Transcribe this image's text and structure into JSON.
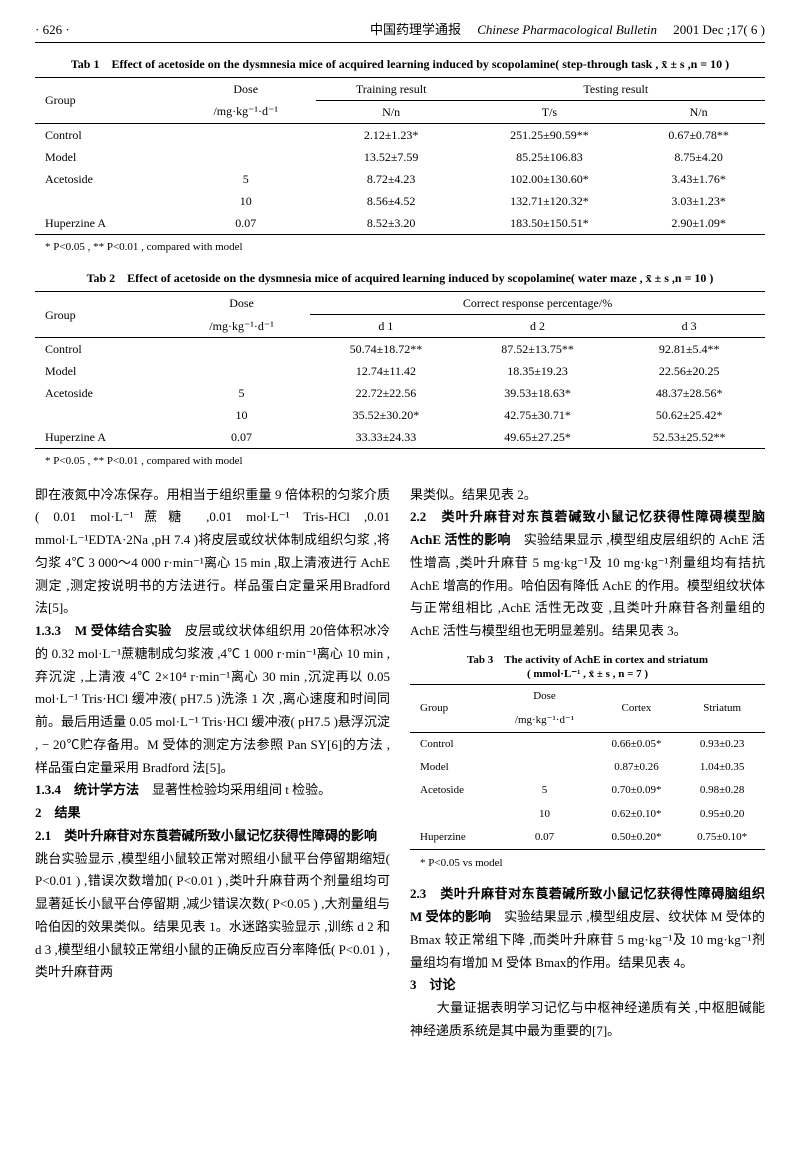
{
  "header": {
    "page": "· 626 ·",
    "journal_cn": "中国药理学通报",
    "journal_en": "Chinese Pharmacological Bulletin",
    "issue": "2001 Dec ;17( 6 )"
  },
  "tab1": {
    "title": "Tab 1　Effect of acetoside on the dysmnesia mice of acquired learning induced by scopolamine( step-through task , x̄ ± s ,n = 10 )",
    "h_group": "Group",
    "h_dose": "Dose",
    "h_dose_unit": "/mg·kg⁻¹·d⁻¹",
    "h_train": "Training result",
    "h_train_n": "N/n",
    "h_test": "Testing result",
    "h_test_t": "T/s",
    "h_test_n": "N/n",
    "rows": [
      {
        "g": "Control",
        "d": "",
        "tr": "2.12±1.23*",
        "tt": "251.25±90.59**",
        "tn": "0.67±0.78**"
      },
      {
        "g": "Model",
        "d": "",
        "tr": "13.52±7.59",
        "tt": "85.25±106.83",
        "tn": "8.75±4.20"
      },
      {
        "g": "Acetoside",
        "d": "5",
        "tr": "8.72±4.23",
        "tt": "102.00±130.60*",
        "tn": "3.43±1.76*"
      },
      {
        "g": "",
        "d": "10",
        "tr": "8.56±4.52",
        "tt": "132.71±120.32*",
        "tn": "3.03±1.23*"
      },
      {
        "g": "Huperzine A",
        "d": "0.07",
        "tr": "8.52±3.20",
        "tt": "183.50±150.51*",
        "tn": "2.90±1.09*"
      }
    ],
    "footnote": "* P<0.05 , ** P<0.01 , compared with model"
  },
  "tab2": {
    "title": "Tab 2　Effect of acetoside on the dysmnesia mice of acquired learning induced by scopolamine( water maze , x̄ ± s ,n = 10 )",
    "h_group": "Group",
    "h_dose": "Dose",
    "h_dose_unit": "/mg·kg⁻¹·d⁻¹",
    "h_resp": "Correct response percentage/%",
    "h_d1": "d 1",
    "h_d2": "d 2",
    "h_d3": "d 3",
    "rows": [
      {
        "g": "Control",
        "d": "",
        "d1": "50.74±18.72**",
        "d2": "87.52±13.75**",
        "d3": "92.81±5.4**"
      },
      {
        "g": "Model",
        "d": "",
        "d1": "12.74±11.42",
        "d2": "18.35±19.23",
        "d3": "22.56±20.25"
      },
      {
        "g": "Acetoside",
        "d": "5",
        "d1": "22.72±22.56",
        "d2": "39.53±18.63*",
        "d3": "48.37±28.56*"
      },
      {
        "g": "",
        "d": "10",
        "d1": "35.52±30.20*",
        "d2": "42.75±30.71*",
        "d3": "50.62±25.42*"
      },
      {
        "g": "Huperzine A",
        "d": "0.07",
        "d1": "33.33±24.33",
        "d2": "49.65±27.25*",
        "d3": "52.53±25.52**"
      }
    ],
    "footnote": "* P<0.05 , ** P<0.01 , compared with model"
  },
  "tab3": {
    "title_l1": "Tab 3　The activity of AchE in cortex and striatum",
    "title_l2": "( mmol·L⁻¹ , x̄ ± s , n = 7 )",
    "h_group": "Group",
    "h_dose": "Dose",
    "h_dose_unit": "/mg·kg⁻¹·d⁻¹",
    "h_cortex": "Cortex",
    "h_stri": "Striatum",
    "rows": [
      {
        "g": "Control",
        "d": "",
        "c": "0.66±0.05*",
        "s": "0.93±0.23"
      },
      {
        "g": "Model",
        "d": "",
        "c": "0.87±0.26",
        "s": "1.04±0.35"
      },
      {
        "g": "Acetoside",
        "d": "5",
        "c": "0.70±0.09*",
        "s": "0.98±0.28"
      },
      {
        "g": "",
        "d": "10",
        "c": "0.62±0.10*",
        "s": "0.95±0.20"
      },
      {
        "g": "Huperzine",
        "d": "0.07",
        "c": "0.50±0.20*",
        "s": "0.75±0.10*"
      }
    ],
    "footnote": "* P<0.05 vs model"
  },
  "left_col": {
    "p1": "即在液氮中冷冻保存。用相当于组织重量 9 倍体积的匀浆介质( 0.01 mol·L⁻¹蔗糖 ,0.01 mol·L⁻¹ Tris-HCl ,0.01 mmol·L⁻¹EDTA·2Na ,pH 7.4 )将皮层或纹状体制成组织匀浆 ,将匀浆 4℃ 3 000～4 000 r·min⁻¹离心 15 min ,取上清液进行 AchE 测定 ,测定按说明书的方法进行。样品蛋白定量采用Bradford 法[5]。",
    "p2_label": "1.3.3　M 受体结合实验",
    "p2": "　皮层或纹状体组织用 20倍体积冰冷的 0.32 mol·L⁻¹蔗糖制成匀浆液 ,4℃ 1 000 r·min⁻¹离心 10 min ,弃沉淀 ,上清液 4℃ 2×10⁴ r·min⁻¹离心 30 min ,沉淀再以 0.05 mol·L⁻¹ Tris·HCl 缓冲液( pH7.5 )洗涤 1 次 ,离心速度和时间同前。最后用适量 0.05 mol·L⁻¹ Tris·HCl 缓冲液( pH7.5 )悬浮沉淀 , − 20℃贮存备用。M 受体的测定方法参照 Pan SY[6]的方法 ,样品蛋白定量采用 Bradford 法[5]。",
    "p3_label": "1.3.4　统计学方法",
    "p3": "　显著性检验均采用组间 t 检验。",
    "p4_label": "2　结果",
    "p5_label": "2.1　类叶升麻苷对东莨菪碱所致小鼠记忆获得性障碍的影响",
    "p5": "　跳台实验显示 ,模型组小鼠较正常对照组小鼠平台停留期缩短( P<0.01 ) ,错误次数增加( P<0.01 ) ,类叶升麻苷两个剂量组均可显著延长小鼠平台停留期 ,减少错误次数( P<0.05 ) ,大剂量组与哈伯因的效果类似。结果见表 1。水迷路实验显示 ,训练 d 2 和 d 3 ,模型组小鼠较正常组小鼠的正确反应百分率降低( P<0.01 ) ,类叶升麻苷两"
  },
  "right_col": {
    "p1": "果类似。结果见表 2。",
    "p2_label": "2.2　类叶升麻苷对东莨菪碱致小鼠记忆获得性障碍模型脑 AchE 活性的影响",
    "p2": "　实验结果显示 ,模型组皮层组织的 AchE 活性增高 ,类叶升麻苷 5 mg·kg⁻¹及 10 mg·kg⁻¹剂量组均有拮抗 AchE 增高的作用。哈伯因有降低 AchE 的作用。模型组纹状体与正常组相比 ,AchE 活性无改变 ,且类叶升麻苷各剂量组的 AchE 活性与模型组也无明显差别。结果见表 3。",
    "p3_label": "2.3　类叶升麻苷对东莨菪碱所致小鼠记忆获得性障碍脑组织 M 受体的影响",
    "p3": "　实验结果显示 ,模型组皮层、纹状体 M 受体的 Bmax 较正常组下降 ,而类叶升麻苷 5 mg·kg⁻¹及 10 mg·kg⁻¹剂量组均有增加 M 受体 Bmax的作用。结果见表 4。",
    "p4_label": "3　讨论",
    "p4": "　　大量证据表明学习记忆与中枢神经递质有关 ,中枢胆碱能神经递质系统是其中最为重要的[7]。"
  }
}
